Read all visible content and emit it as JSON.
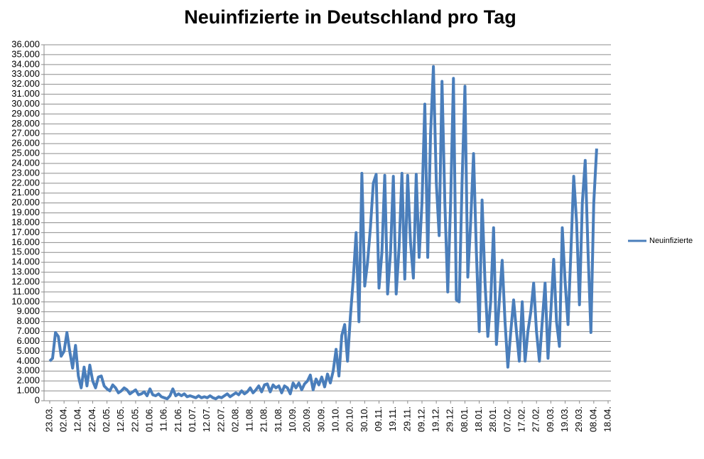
{
  "chart_data": {
    "type": "line",
    "title": "Neuinfizierte in Deutschland pro Tag",
    "categories": [
      "23.03.",
      null,
      null,
      null,
      null,
      "02.04.",
      null,
      null,
      null,
      null,
      "12.04.",
      null,
      null,
      null,
      null,
      "22.04.",
      null,
      null,
      null,
      null,
      "02.05.",
      null,
      null,
      null,
      null,
      "12.05.",
      null,
      null,
      null,
      null,
      "22.05.",
      null,
      null,
      null,
      null,
      "01.06.",
      null,
      null,
      null,
      null,
      "11.06.",
      null,
      null,
      null,
      null,
      "21.06.",
      null,
      null,
      null,
      null,
      "01.07.",
      null,
      null,
      null,
      null,
      "12.07.",
      null,
      null,
      null,
      null,
      "22.07.",
      null,
      null,
      null,
      null,
      "02.08.",
      null,
      null,
      null,
      null,
      "11.08.",
      null,
      null,
      null,
      null,
      "21.08.",
      null,
      null,
      null,
      null,
      "31.08.",
      null,
      null,
      null,
      null,
      "10.09.",
      null,
      null,
      null,
      null,
      "20.09.",
      null,
      null,
      null,
      null,
      "30.09.",
      null,
      null,
      null,
      null,
      "10.10.",
      null,
      null,
      null,
      null,
      "20.10.",
      null,
      null,
      null,
      null,
      "30.10.",
      null,
      null,
      null,
      null,
      "09.11.",
      null,
      null,
      null,
      null,
      "19.11.",
      null,
      null,
      null,
      null,
      "29.11.",
      null,
      null,
      null,
      null,
      "09.12.",
      null,
      null,
      null,
      null,
      "19.12.",
      null,
      null,
      null,
      null,
      "29.12.",
      null,
      null,
      null,
      null,
      "08.01.",
      null,
      null,
      null,
      null,
      "18.01.",
      null,
      null,
      null,
      null,
      "28.01.",
      null,
      null,
      null,
      null,
      "07.02.",
      null,
      null,
      null,
      null,
      "17.02.",
      null,
      null,
      null,
      null,
      "27.02.",
      null,
      null,
      null,
      null,
      "09.03.",
      null,
      null,
      null,
      null,
      "19.03.",
      null,
      null,
      null,
      null,
      "29.03.",
      null,
      null,
      null,
      null,
      "08.04.",
      null,
      null,
      null,
      null,
      "18.04."
    ],
    "series": [
      {
        "name": "Neuinfizierte",
        "color": "#4a7ebb",
        "values": [
          4000,
          4300,
          6900,
          6500,
          4500,
          5000,
          6900,
          5000,
          3300,
          5600,
          2500,
          1300,
          3400,
          1500,
          3600,
          2000,
          1300,
          2400,
          2500,
          1500,
          1200,
          1000,
          1600,
          1300,
          800,
          1000,
          1300,
          1100,
          700,
          900,
          1100,
          600,
          700,
          900,
          500,
          1200,
          600,
          500,
          700,
          400,
          300,
          200,
          500,
          1200,
          500,
          700,
          500,
          700,
          400,
          500,
          400,
          300,
          500,
          300,
          400,
          300,
          500,
          300,
          200,
          400,
          300,
          500,
          700,
          400,
          600,
          800,
          600,
          1000,
          700,
          900,
          1300,
          800,
          1100,
          1500,
          900,
          1600,
          1700,
          900,
          1600,
          1300,
          1500,
          800,
          1500,
          1300,
          700,
          1800,
          1300,
          1800,
          1100,
          1700,
          2000,
          2600,
          1100,
          2200,
          1600,
          2400,
          1400,
          2700,
          1800,
          3000,
          5200,
          2500,
          6600,
          7700,
          4000,
          8500,
          12300,
          17000,
          8000,
          23000,
          11600,
          14000,
          17500,
          22000,
          22900,
          11400,
          15000,
          22800,
          10800,
          15000,
          22700,
          10800,
          15500,
          23000,
          12300,
          22800,
          16000,
          12400,
          22900,
          14500,
          20000,
          30000,
          14500,
          27000,
          33800,
          22000,
          16700,
          32300,
          20000,
          11000,
          20000,
          32600,
          10200,
          10000,
          22000,
          31800,
          12500,
          18000,
          25000,
          15000,
          7000,
          20300,
          12000,
          6500,
          10000,
          17500,
          5700,
          10000,
          14200,
          8000,
          3400,
          7000,
          10200,
          7000,
          4000,
          10000,
          4000,
          7000,
          9000,
          11900,
          7000,
          4000,
          8000,
          11900,
          4300,
          9000,
          14300,
          8000,
          5500,
          17500,
          12000,
          7700,
          15000,
          22700,
          18000,
          9700,
          20000,
          24300,
          15000,
          6900,
          20000,
          25500,
          null,
          null,
          null,
          null
        ]
      }
    ],
    "ylim": [
      0,
      36000
    ],
    "yticks": [
      0,
      {
        "value": 1000,
        "label": "1.000"
      },
      {
        "value": 2000,
        "label": "2.000"
      },
      {
        "value": 3000,
        "label": "3.000"
      },
      {
        "value": 4000,
        "label": "4.000"
      },
      {
        "value": 5000,
        "label": "5.000"
      },
      {
        "value": 6000,
        "label": "6.000"
      },
      {
        "value": 7000,
        "label": "7.000"
      },
      {
        "value": 8000,
        "label": "8.000"
      },
      {
        "value": 9000,
        "label": "9.000"
      },
      {
        "value": 10000,
        "label": "10.000"
      },
      {
        "value": 11000,
        "label": "11.000"
      },
      {
        "value": 12000,
        "label": "12.000"
      },
      {
        "value": 13000,
        "label": "13.000"
      },
      {
        "value": 14000,
        "label": "14.000"
      },
      {
        "value": 15000,
        "label": "15.000"
      },
      {
        "value": 16000,
        "label": "16.000"
      },
      {
        "value": 17000,
        "label": "17.000"
      },
      {
        "value": 18000,
        "label": "18.000"
      },
      {
        "value": 19000,
        "label": "19.000"
      },
      {
        "value": 20000,
        "label": "20.000"
      },
      {
        "value": 21000,
        "label": "21.000"
      },
      {
        "value": 22000,
        "label": "22.000"
      },
      {
        "value": 23000,
        "label": "23.000"
      },
      {
        "value": 24000,
        "label": "24.000"
      },
      {
        "value": 25000,
        "label": "25.000"
      },
      {
        "value": 26000,
        "label": "26.000"
      },
      {
        "value": 27000,
        "label": "27.000"
      },
      {
        "value": 28000,
        "label": "28.000"
      },
      {
        "value": 29000,
        "label": "29.000"
      },
      {
        "value": 30000,
        "label": "30.000"
      },
      {
        "value": 31000,
        "label": "31.000"
      },
      {
        "value": 32000,
        "label": "32.000"
      },
      {
        "value": 33000,
        "label": "33.000"
      },
      {
        "value": 34000,
        "label": "34.000"
      },
      {
        "value": 35000,
        "label": "35.000"
      },
      {
        "value": 36000,
        "label": "36.000"
      }
    ],
    "grid": true,
    "legend": "right"
  }
}
